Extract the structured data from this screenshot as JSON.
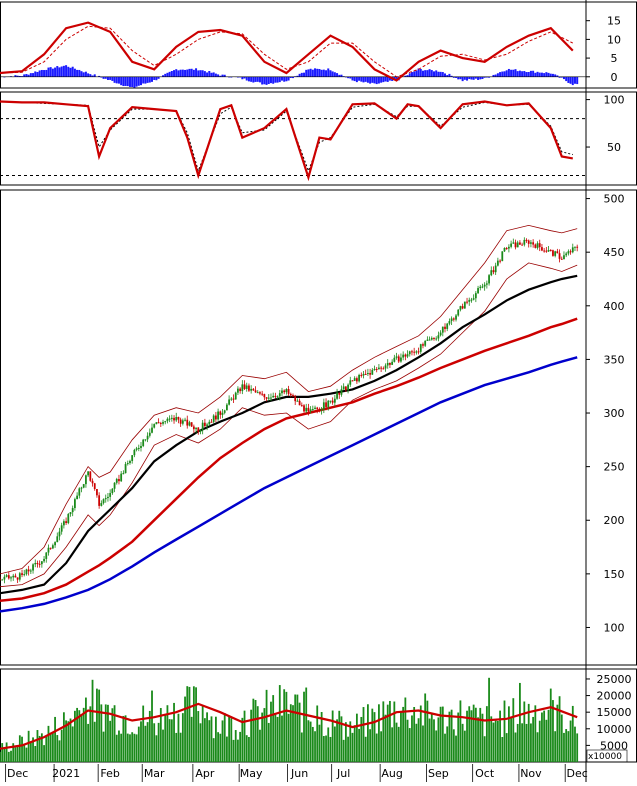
{
  "chart_data": [
    {
      "panel": "macd",
      "type": "line",
      "y_ticks": [
        "15",
        "10",
        "5",
        "0"
      ],
      "y_tick_values": [
        15,
        10,
        5,
        0
      ],
      "ylim": [
        -3,
        20
      ],
      "series_colors": {
        "macd": "#cc0000",
        "signal": "#cc0000",
        "histogram": "#1a1aff"
      },
      "x": [
        0,
        10,
        20,
        30,
        40,
        50,
        60,
        70,
        80,
        90,
        100,
        110,
        120,
        130,
        140,
        150,
        160,
        170,
        180,
        190,
        200,
        210,
        220,
        230,
        240,
        250,
        260
      ],
      "macd": [
        1,
        1.5,
        6,
        13,
        14.5,
        12,
        4,
        2,
        8,
        12,
        12.5,
        11,
        4,
        1,
        6,
        11,
        8,
        2,
        -1,
        4,
        7,
        5,
        4,
        8,
        11,
        13,
        7
      ],
      "signal": [
        1,
        1.2,
        4,
        10,
        13.5,
        13,
        7,
        3,
        6,
        10,
        12,
        11.5,
        6,
        2,
        4,
        9,
        9,
        4,
        0,
        2,
        5.5,
        6,
        4.5,
        6,
        9.5,
        12,
        9
      ],
      "histogram": [
        0,
        0.3,
        2,
        3,
        1,
        -1,
        -3,
        -1,
        2,
        2,
        0.5,
        -0.5,
        -2,
        -1,
        2,
        2,
        -1,
        -2,
        -1,
        2,
        1.5,
        -1,
        -0.5,
        2,
        1.5,
        1,
        -2
      ]
    },
    {
      "panel": "stochastic",
      "type": "line",
      "y_ticks": [
        "100",
        "50"
      ],
      "y_tick_values": [
        100,
        50
      ],
      "ylim": [
        10,
        108
      ],
      "reference_lines": [
        80,
        20
      ],
      "series_colors": {
        "k": "#cc0000",
        "d": "#cc0000"
      },
      "x": [
        0,
        10,
        20,
        30,
        40,
        45,
        50,
        60,
        70,
        80,
        85,
        90,
        100,
        105,
        110,
        120,
        130,
        140,
        145,
        150,
        160,
        170,
        180,
        185,
        190,
        200,
        210,
        220,
        230,
        240,
        250,
        255,
        260
      ],
      "k": [
        98,
        97,
        97,
        95,
        93,
        40,
        70,
        92,
        90,
        88,
        60,
        20,
        90,
        94,
        60,
        70,
        90,
        18,
        60,
        58,
        95,
        96,
        80,
        95,
        93,
        70,
        95,
        98,
        94,
        96,
        70,
        40,
        38
      ],
      "d": [
        98,
        97,
        96,
        95,
        94,
        50,
        68,
        90,
        90,
        88,
        65,
        25,
        85,
        92,
        65,
        68,
        88,
        25,
        55,
        60,
        92,
        95,
        82,
        93,
        93,
        72,
        92,
        97,
        94,
        95,
        72,
        45,
        42
      ]
    },
    {
      "panel": "price",
      "type": "line",
      "y_ticks": [
        "500",
        "450",
        "400",
        "350",
        "300",
        "250",
        "200",
        "150",
        "100"
      ],
      "y_tick_values": [
        500,
        450,
        400,
        350,
        300,
        250,
        200,
        150,
        100
      ],
      "ylim": [
        65,
        508
      ],
      "x_labels": [
        "Dec",
        "2021",
        "Feb",
        "Mar",
        "Apr",
        "May",
        "Jun",
        "Jul",
        "Aug",
        "Sep",
        "Oct",
        "Nov",
        "Dec"
      ],
      "x_label_positions": [
        8,
        30,
        50,
        70,
        93,
        114,
        136,
        156,
        178,
        199,
        220,
        241,
        262
      ],
      "x": [
        0,
        10,
        20,
        30,
        40,
        45,
        50,
        60,
        70,
        80,
        90,
        100,
        110,
        120,
        130,
        140,
        150,
        160,
        170,
        180,
        190,
        200,
        210,
        220,
        230,
        240,
        250,
        255,
        262
      ],
      "close": [
        145,
        148,
        165,
        200,
        245,
        215,
        225,
        260,
        290,
        295,
        285,
        300,
        325,
        315,
        320,
        300,
        310,
        330,
        340,
        350,
        360,
        375,
        400,
        420,
        455,
        460,
        450,
        445,
        455
      ],
      "ma_black": [
        132,
        135,
        140,
        160,
        190,
        200,
        210,
        230,
        255,
        270,
        283,
        292,
        300,
        310,
        315,
        315,
        318,
        322,
        330,
        340,
        352,
        365,
        380,
        392,
        405,
        415,
        422,
        425,
        428
      ],
      "ma_red": [
        125,
        127,
        132,
        140,
        152,
        158,
        165,
        180,
        200,
        220,
        240,
        258,
        272,
        285,
        295,
        300,
        305,
        310,
        318,
        325,
        333,
        342,
        350,
        358,
        365,
        372,
        380,
        383,
        388
      ],
      "ma_blue": [
        115,
        118,
        122,
        128,
        135,
        140,
        145,
        157,
        170,
        182,
        194,
        206,
        218,
        230,
        240,
        250,
        260,
        270,
        280,
        290,
        300,
        310,
        318,
        326,
        332,
        338,
        345,
        348,
        352
      ],
      "band_upper": [
        150,
        155,
        175,
        215,
        250,
        240,
        245,
        275,
        298,
        305,
        300,
        315,
        335,
        332,
        338,
        320,
        325,
        340,
        352,
        362,
        372,
        390,
        415,
        440,
        470,
        475,
        470,
        468,
        472
      ],
      "band_lower": [
        138,
        140,
        150,
        175,
        205,
        195,
        205,
        235,
        270,
        280,
        272,
        285,
        305,
        298,
        300,
        285,
        292,
        312,
        322,
        330,
        342,
        355,
        375,
        395,
        425,
        440,
        435,
        432,
        438
      ],
      "series_colors": {
        "candles_up": "#1a8a1a",
        "candles_down": "#cc0000",
        "ma_black": "#000000",
        "ma_red": "#cc0000",
        "ma_blue": "#0000cc",
        "bands": "#990000"
      }
    },
    {
      "panel": "volume",
      "type": "bar",
      "y_ticks": [
        "25000",
        "20000",
        "15000",
        "10000",
        "5000"
      ],
      "y_tick_values": [
        25000,
        20000,
        15000,
        10000,
        5000
      ],
      "ylim": [
        0,
        28000
      ],
      "unit_label": "x10000",
      "volume_color": "#1a8a1a",
      "volume_ma_color": "#cc0000",
      "x": [
        0,
        10,
        20,
        30,
        40,
        50,
        60,
        70,
        80,
        90,
        100,
        110,
        120,
        130,
        140,
        150,
        160,
        170,
        180,
        190,
        200,
        210,
        220,
        230,
        240,
        250,
        262
      ],
      "volume": [
        4000,
        6000,
        8000,
        12000,
        18000,
        15000,
        13000,
        12000,
        15000,
        17000,
        11000,
        12000,
        15000,
        17000,
        14000,
        12000,
        10000,
        13000,
        16000,
        15000,
        13000,
        14000,
        12000,
        13000,
        15000,
        16000,
        11000
      ],
      "volume_ma": [
        4000,
        5000,
        7500,
        11000,
        15500,
        14500,
        12500,
        13500,
        15000,
        17500,
        15000,
        12000,
        13500,
        15500,
        14000,
        12500,
        10500,
        12000,
        15000,
        15500,
        14000,
        13500,
        12500,
        13000,
        15000,
        16500,
        13500
      ]
    }
  ]
}
